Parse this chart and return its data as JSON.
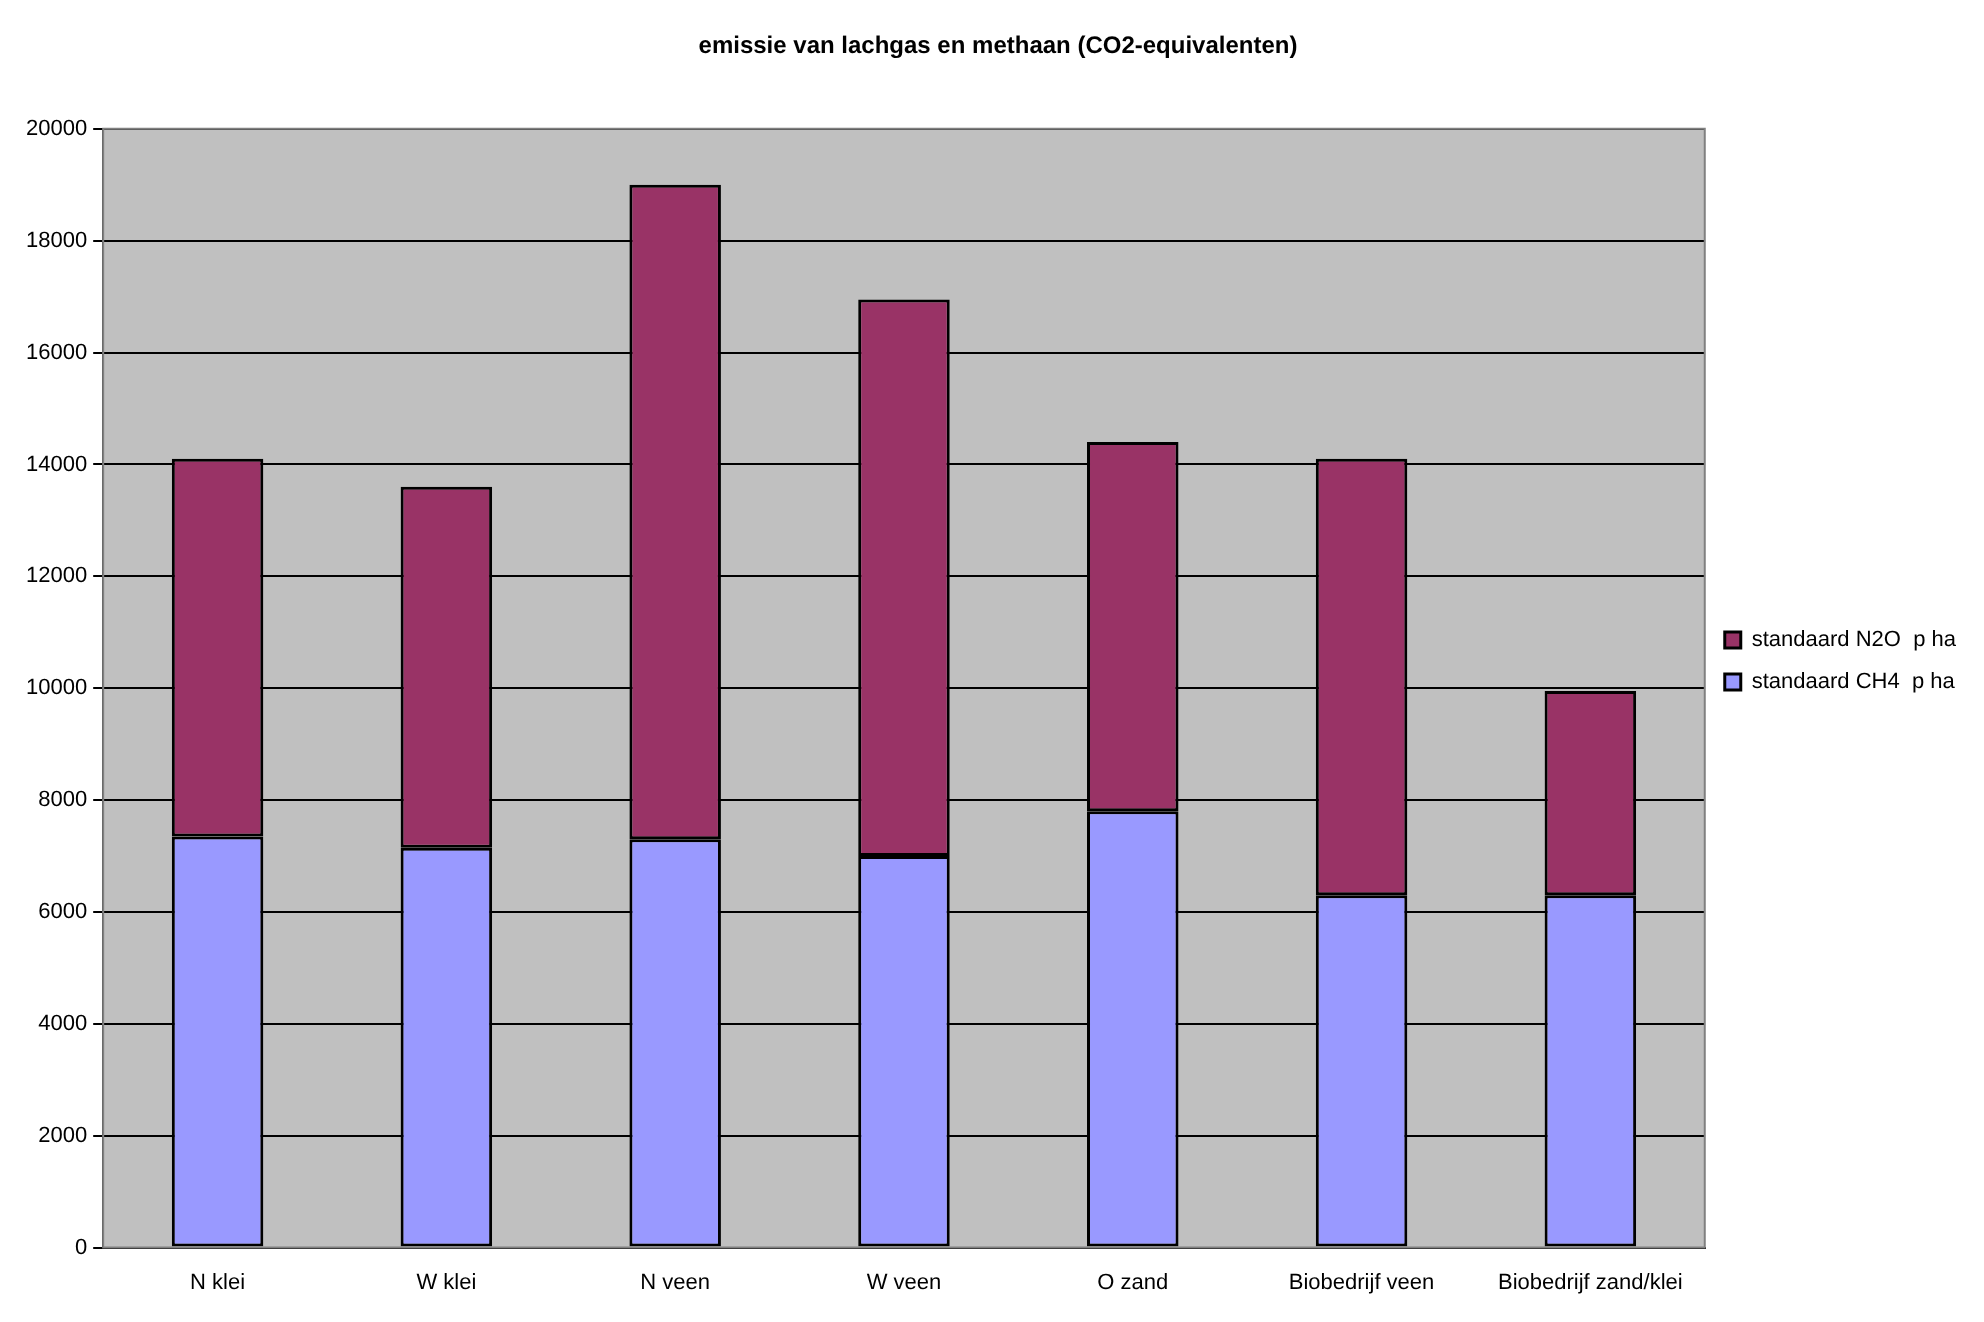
{
  "chart_data": {
    "type": "bar",
    "title": "emissie van lachgas en methaan (CO2-equivalenten)",
    "categories": [
      "N klei",
      "W klei",
      "N veen",
      "W veen",
      "O zand",
      "Biobedrijf veen",
      "Biobedrijf zand/klei"
    ],
    "stacked": true,
    "series": [
      {
        "name": "standaard CH4  p ha",
        "color": "#9999ff",
        "values": [
          7350,
          7150,
          7300,
          7000,
          7800,
          6300,
          6300
        ]
      },
      {
        "name": "standaard N2O  p ha",
        "color": "#993366",
        "values": [
          6750,
          6450,
          11700,
          9950,
          6600,
          7800,
          3650
        ]
      }
    ],
    "ylim": [
      0,
      20000
    ],
    "yticks": [
      0,
      2000,
      4000,
      6000,
      8000,
      10000,
      12000,
      14000,
      16000,
      18000,
      20000
    ],
    "grid": "y",
    "legend": "right"
  }
}
